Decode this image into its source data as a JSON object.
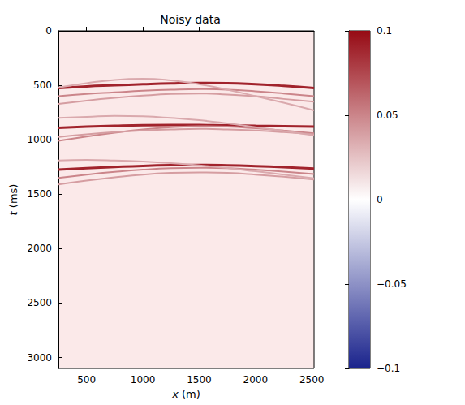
{
  "chart_data": {
    "type": "seismic_section",
    "title": "Noisy data",
    "x_label": "x (m)",
    "y_label": "t (ms)",
    "xlim": [
      250,
      2520
    ],
    "xticks": [
      500,
      1000,
      1500,
      2000,
      2500
    ],
    "ylim": [
      3100,
      0
    ],
    "yticks": [
      0,
      500,
      1000,
      1500,
      2000,
      2500,
      3000
    ],
    "grid": false,
    "events": [
      {
        "x": [
          250,
          500,
          750,
          1000,
          1250,
          1500,
          1750,
          2000,
          2250,
          2520
        ],
        "t": [
          525,
          510,
          500,
          490,
          482,
          478,
          480,
          490,
          505,
          525
        ],
        "amplitude": 0.09
      },
      {
        "x": [
          250,
          500,
          750,
          1000,
          1250,
          1500,
          1750,
          2000,
          2250,
          2520
        ],
        "t": [
          600,
          580,
          565,
          550,
          540,
          535,
          540,
          555,
          575,
          600
        ],
        "amplitude": 0.05
      },
      {
        "x": [
          250,
          500,
          750,
          1000,
          1250,
          1500,
          1750,
          2000,
          2250,
          2520
        ],
        "t": [
          670,
          640,
          615,
          595,
          580,
          575,
          585,
          600,
          625,
          650
        ],
        "amplitude": 0.04
      },
      {
        "x": [
          250,
          500,
          750,
          1000,
          1250,
          1500,
          1750,
          2000,
          2250,
          2520
        ],
        "t": [
          520,
          480,
          450,
          440,
          455,
          490,
          540,
          600,
          660,
          730
        ],
        "amplitude": 0.035
      },
      {
        "x": [
          250,
          500,
          750,
          1000,
          1250,
          1500,
          1750,
          2000,
          2250,
          2520
        ],
        "t": [
          890,
          880,
          872,
          866,
          864,
          865,
          868,
          872,
          875,
          880
        ],
        "amplitude": 0.09
      },
      {
        "x": [
          250,
          500,
          750,
          1000,
          1250,
          1500,
          1750,
          2000,
          2250,
          2520
        ],
        "t": [
          1010,
          970,
          935,
          905,
          885,
          875,
          880,
          895,
          915,
          940
        ],
        "amplitude": 0.05
      },
      {
        "x": [
          250,
          500,
          750,
          1000,
          1250,
          1500,
          1750,
          2000,
          2250,
          2520
        ],
        "t": [
          975,
          950,
          930,
          915,
          905,
          900,
          905,
          915,
          930,
          950
        ],
        "amplitude": 0.04
      },
      {
        "x": [
          250,
          500,
          750,
          1000,
          1250,
          1500,
          1750,
          2000,
          2250,
          2520
        ],
        "t": [
          800,
          790,
          780,
          785,
          800,
          820,
          850,
          885,
          920,
          960
        ],
        "amplitude": 0.035
      },
      {
        "x": [
          250,
          500,
          750,
          1000,
          1250,
          1500,
          1750,
          2000,
          2250,
          2520
        ],
        "t": [
          1275,
          1262,
          1250,
          1240,
          1234,
          1232,
          1235,
          1242,
          1252,
          1265
        ],
        "amplitude": 0.09
      },
      {
        "x": [
          250,
          500,
          750,
          1000,
          1250,
          1500,
          1750,
          2000,
          2250,
          2520
        ],
        "t": [
          1350,
          1320,
          1295,
          1275,
          1262,
          1258,
          1262,
          1275,
          1292,
          1315
        ],
        "amplitude": 0.05
      },
      {
        "x": [
          250,
          500,
          750,
          1000,
          1250,
          1500,
          1750,
          2000,
          2250,
          2520
        ],
        "t": [
          1410,
          1375,
          1345,
          1320,
          1305,
          1300,
          1305,
          1320,
          1340,
          1365
        ],
        "amplitude": 0.04
      },
      {
        "x": [
          250,
          500,
          750,
          1000,
          1250,
          1500,
          1750,
          2000,
          2250,
          2520
        ],
        "t": [
          1190,
          1185,
          1190,
          1200,
          1215,
          1235,
          1260,
          1290,
          1320,
          1355
        ],
        "amplitude": 0.035
      }
    ],
    "colorbar": {
      "range": [
        -0.1,
        0.1
      ],
      "ticks": [
        {
          "value": -0.1,
          "label": "−0.1"
        },
        {
          "value": -0.05,
          "label": "−0.05"
        },
        0,
        0.05,
        0.1
      ]
    }
  }
}
